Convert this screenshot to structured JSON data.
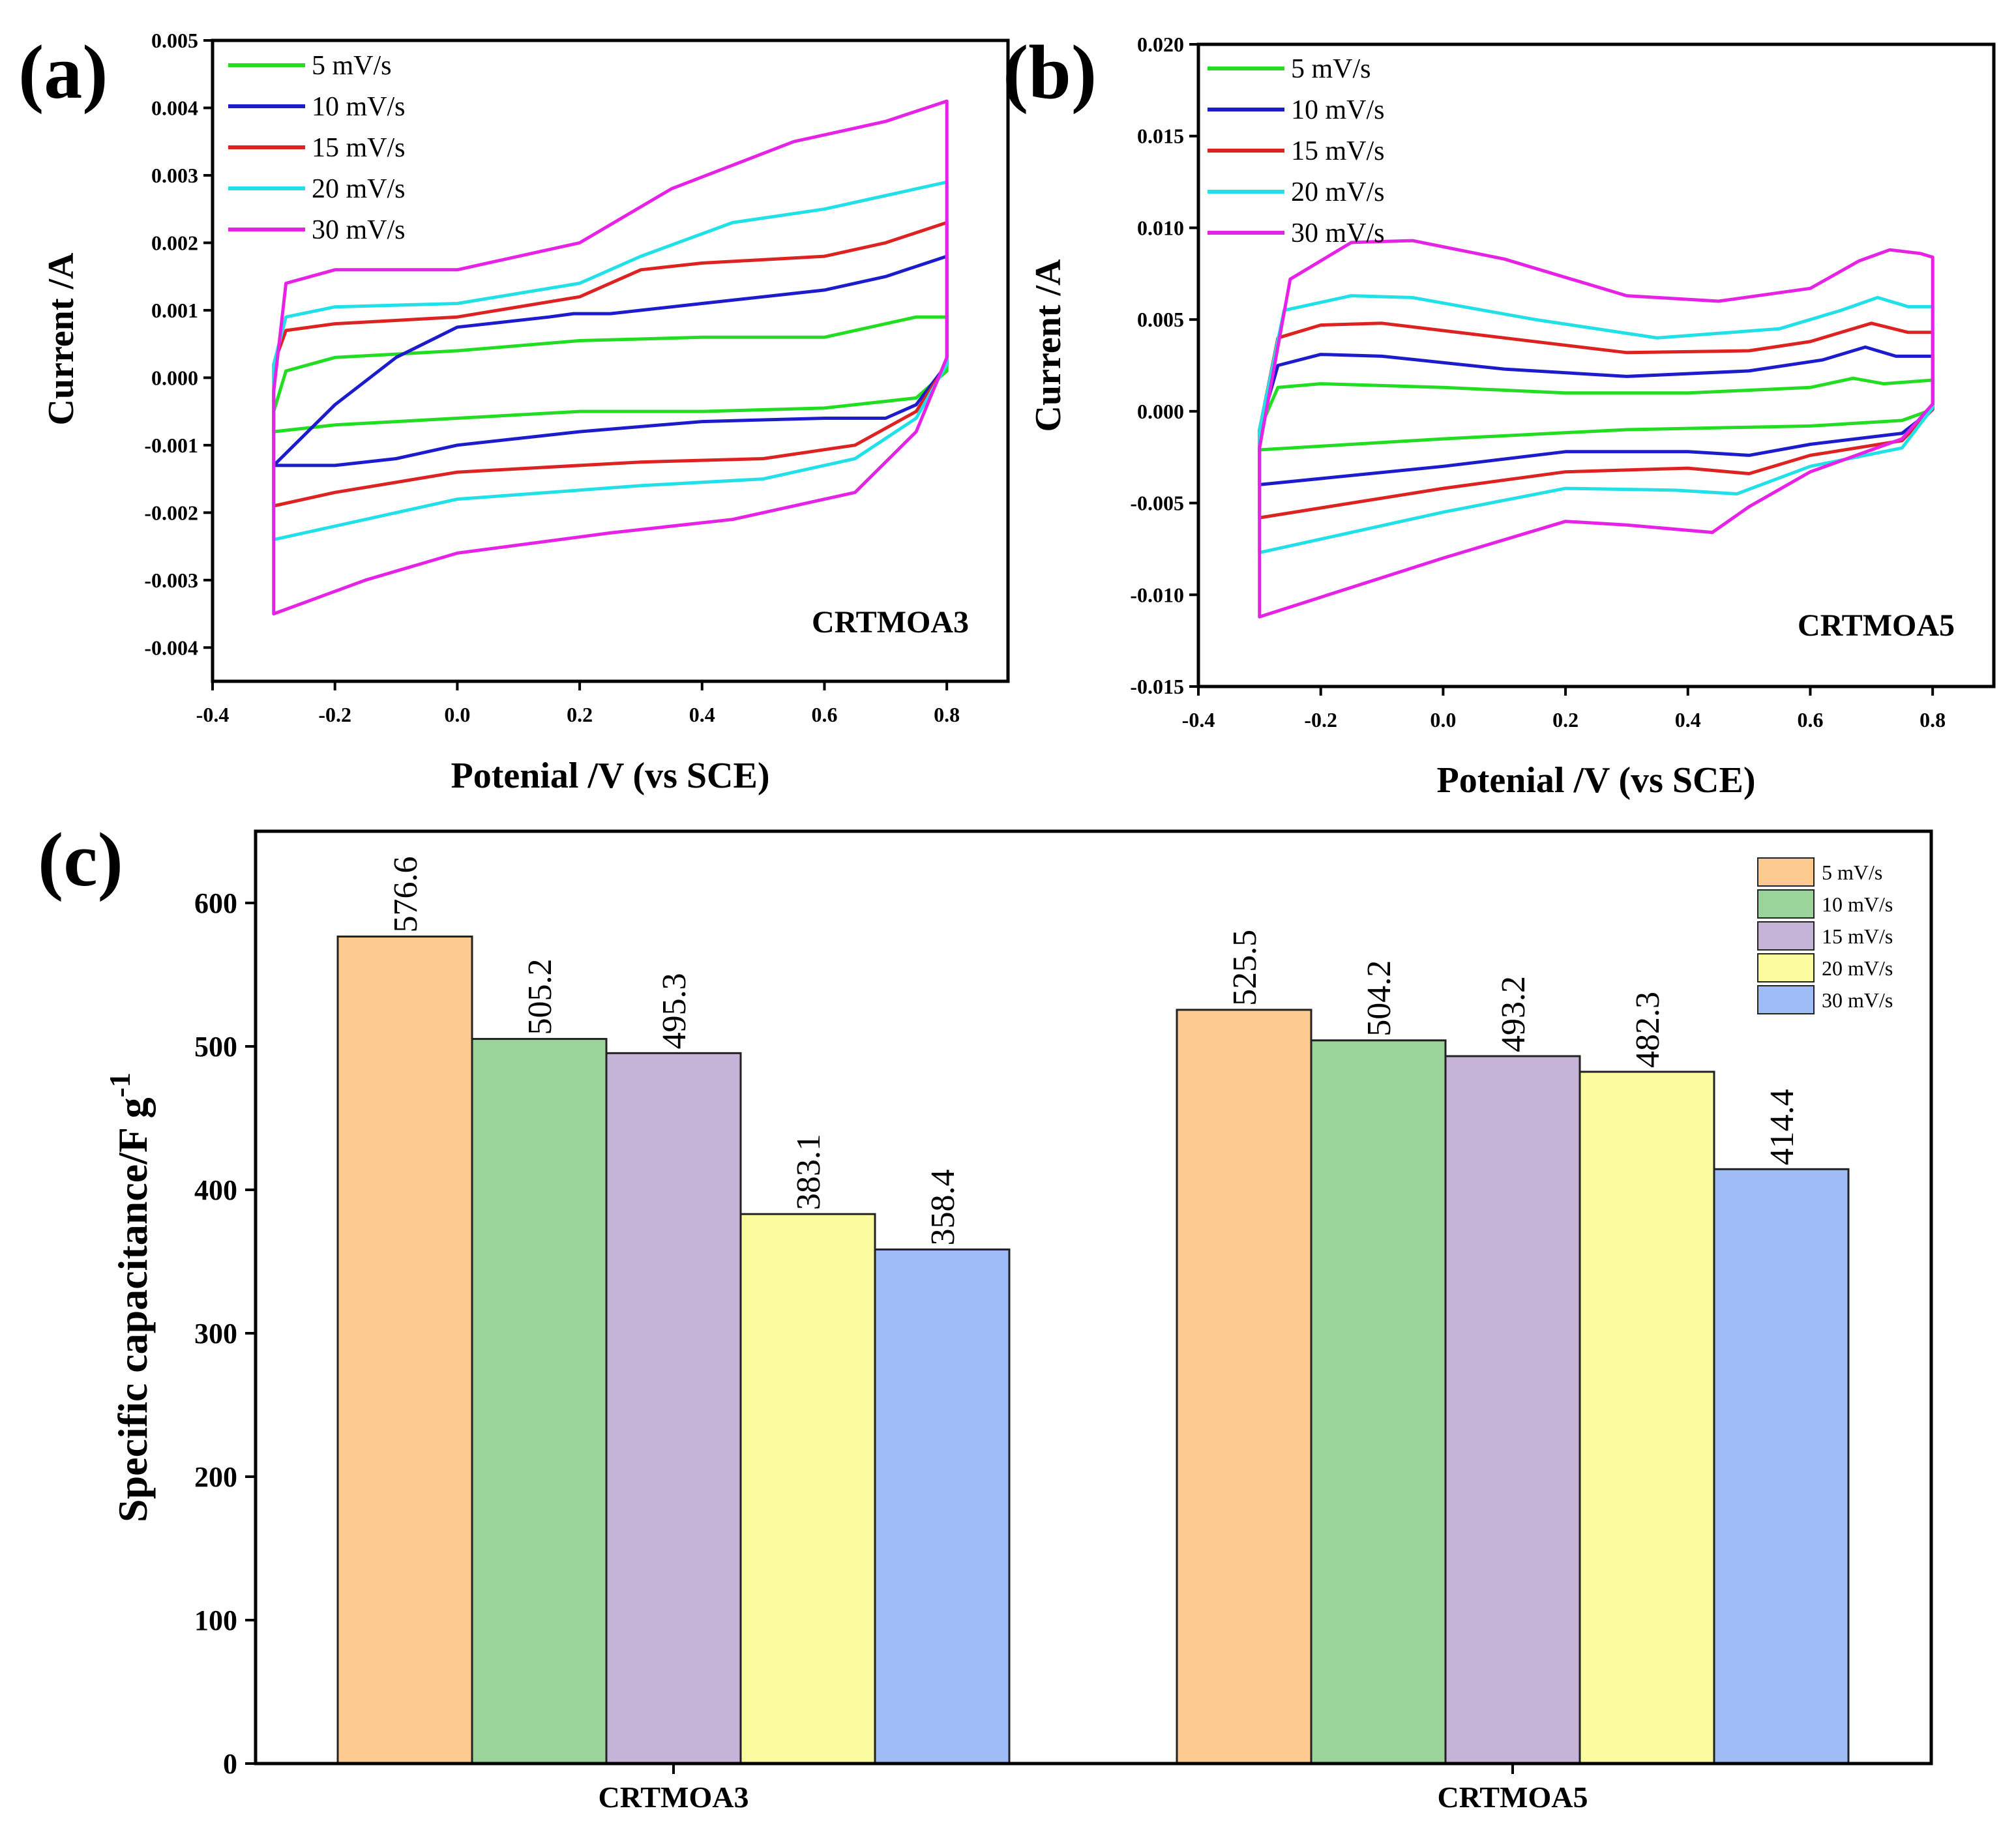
{
  "chart_data": [
    {
      "panel": "(a)",
      "type": "line",
      "subtype": "cyclic voltammetry",
      "sample_label": "CRTMOA3",
      "xlabel": "Potenial /V (vs SCE)",
      "ylabel": "Current /A",
      "xlim": [
        -0.4,
        0.9
      ],
      "ylim": [
        -0.0045,
        0.005
      ],
      "xticks": [
        "-0.4",
        "-0.2",
        "0.0",
        "0.2",
        "0.4",
        "0.6",
        "0.8"
      ],
      "yticks": [
        "0.005",
        "0.004",
        "0.003",
        "0.002",
        "0.001",
        "0.000",
        "-0.001",
        "-0.002",
        "-0.003",
        "-0.004"
      ],
      "legend_position": "top-left",
      "series": [
        {
          "name": "5 mV/s",
          "color": "#22dd22",
          "upper": [
            [
              -0.3,
              -0.0005
            ],
            [
              -0.28,
              0.0001
            ],
            [
              -0.2,
              0.0003
            ],
            [
              0.0,
              0.0004
            ],
            [
              0.2,
              0.00055
            ],
            [
              0.4,
              0.0006
            ],
            [
              0.6,
              0.0006
            ],
            [
              0.75,
              0.0009
            ],
            [
              0.8,
              0.0009
            ]
          ],
          "lower": [
            [
              0.8,
              0.0001
            ],
            [
              0.75,
              -0.0003
            ],
            [
              0.6,
              -0.00045
            ],
            [
              0.4,
              -0.0005
            ],
            [
              0.2,
              -0.0005
            ],
            [
              0.0,
              -0.0006
            ],
            [
              -0.2,
              -0.0007
            ],
            [
              -0.3,
              -0.0008
            ]
          ]
        },
        {
          "name": "10 mV/s",
          "color": "#1c1ccc",
          "upper": [
            [
              -0.3,
              -0.0013
            ],
            [
              -0.2,
              -0.0004
            ],
            [
              -0.1,
              0.0003
            ],
            [
              0.0,
              0.00075
            ],
            [
              0.15,
              0.0009
            ],
            [
              0.19,
              0.00095
            ],
            [
              0.25,
              0.00095
            ],
            [
              0.4,
              0.0011
            ],
            [
              0.6,
              0.0013
            ],
            [
              0.7,
              0.0015
            ],
            [
              0.8,
              0.0018
            ]
          ],
          "lower": [
            [
              0.8,
              0.0002
            ],
            [
              0.75,
              -0.0004
            ],
            [
              0.7,
              -0.0006
            ],
            [
              0.6,
              -0.0006
            ],
            [
              0.4,
              -0.00065
            ],
            [
              0.2,
              -0.0008
            ],
            [
              0.0,
              -0.001
            ],
            [
              -0.1,
              -0.0012
            ],
            [
              -0.2,
              -0.0013
            ],
            [
              -0.3,
              -0.0013
            ]
          ]
        },
        {
          "name": "15 mV/s",
          "color": "#dd2222",
          "upper": [
            [
              -0.3,
              0.0002
            ],
            [
              -0.28,
              0.0007
            ],
            [
              -0.2,
              0.0008
            ],
            [
              0.0,
              0.0009
            ],
            [
              0.2,
              0.0012
            ],
            [
              0.3,
              0.0016
            ],
            [
              0.4,
              0.0017
            ],
            [
              0.6,
              0.0018
            ],
            [
              0.7,
              0.002
            ],
            [
              0.8,
              0.0023
            ]
          ],
          "lower": [
            [
              0.8,
              0.0002
            ],
            [
              0.75,
              -0.0005
            ],
            [
              0.65,
              -0.001
            ],
            [
              0.5,
              -0.0012
            ],
            [
              0.3,
              -0.00125
            ],
            [
              0.0,
              -0.0014
            ],
            [
              -0.2,
              -0.0017
            ],
            [
              -0.3,
              -0.0019
            ]
          ]
        },
        {
          "name": "20 mV/s",
          "color": "#22e0e8",
          "upper": [
            [
              -0.3,
              0.0002
            ],
            [
              -0.28,
              0.0009
            ],
            [
              -0.2,
              0.00105
            ],
            [
              0.0,
              0.0011
            ],
            [
              0.2,
              0.0014
            ],
            [
              0.3,
              0.0018
            ],
            [
              0.45,
              0.0023
            ],
            [
              0.6,
              0.0025
            ],
            [
              0.7,
              0.0027
            ],
            [
              0.8,
              0.0029
            ]
          ],
          "lower": [
            [
              0.8,
              0.0002
            ],
            [
              0.75,
              -0.0006
            ],
            [
              0.65,
              -0.0012
            ],
            [
              0.5,
              -0.0015
            ],
            [
              0.3,
              -0.0016
            ],
            [
              0.0,
              -0.0018
            ],
            [
              -0.15,
              -0.0021
            ],
            [
              -0.3,
              -0.0024
            ]
          ]
        },
        {
          "name": "30 mV/s",
          "color": "#e622e6",
          "upper": [
            [
              -0.3,
              -0.0002
            ],
            [
              -0.28,
              0.0014
            ],
            [
              -0.2,
              0.0016
            ],
            [
              0.0,
              0.0016
            ],
            [
              0.2,
              0.002
            ],
            [
              0.35,
              0.0028
            ],
            [
              0.55,
              0.0035
            ],
            [
              0.7,
              0.0038
            ],
            [
              0.8,
              0.0041
            ]
          ],
          "lower": [
            [
              0.8,
              0.0003
            ],
            [
              0.75,
              -0.0008
            ],
            [
              0.65,
              -0.0017
            ],
            [
              0.45,
              -0.0021
            ],
            [
              0.25,
              -0.0023
            ],
            [
              0.0,
              -0.0026
            ],
            [
              -0.15,
              -0.003
            ],
            [
              -0.3,
              -0.0035
            ]
          ]
        }
      ]
    },
    {
      "panel": "(b)",
      "type": "line",
      "subtype": "cyclic voltammetry",
      "sample_label": "CRTMOA5",
      "xlabel": "Potenial /V (vs SCE)",
      "ylabel": "Current /A",
      "xlim": [
        -0.4,
        0.9
      ],
      "ylim": [
        -0.015,
        0.02
      ],
      "xticks": [
        "-0.4",
        "-0.2",
        "0.0",
        "0.2",
        "0.4",
        "0.6",
        "0.8"
      ],
      "yticks": [
        "0.020",
        "0.015",
        "0.010",
        "0.005",
        "0.000",
        "-0.005",
        "-0.010",
        "-0.015"
      ],
      "legend_position": "top-left",
      "series": [
        {
          "name": "5 mV/s",
          "color": "#22dd22",
          "upper": [
            [
              -0.3,
              -0.001
            ],
            [
              -0.27,
              0.0013
            ],
            [
              -0.2,
              0.0015
            ],
            [
              0.0,
              0.0013
            ],
            [
              0.2,
              0.001
            ],
            [
              0.4,
              0.001
            ],
            [
              0.6,
              0.0013
            ],
            [
              0.67,
              0.0018
            ],
            [
              0.72,
              0.0015
            ],
            [
              0.8,
              0.0017
            ]
          ],
          "lower": [
            [
              0.8,
              0.0001
            ],
            [
              0.75,
              -0.0005
            ],
            [
              0.6,
              -0.0008
            ],
            [
              0.3,
              -0.001
            ],
            [
              0.0,
              -0.0015
            ],
            [
              -0.3,
              -0.0021
            ]
          ]
        },
        {
          "name": "10 mV/s",
          "color": "#1c1ccc",
          "upper": [
            [
              -0.3,
              -0.001
            ],
            [
              -0.27,
              0.0025
            ],
            [
              -0.2,
              0.0031
            ],
            [
              -0.1,
              0.003
            ],
            [
              0.1,
              0.0023
            ],
            [
              0.3,
              0.0019
            ],
            [
              0.5,
              0.0022
            ],
            [
              0.62,
              0.0028
            ],
            [
              0.69,
              0.0035
            ],
            [
              0.74,
              0.003
            ],
            [
              0.8,
              0.003
            ]
          ],
          "lower": [
            [
              0.8,
              0.0001
            ],
            [
              0.75,
              -0.0012
            ],
            [
              0.6,
              -0.0018
            ],
            [
              0.5,
              -0.0024
            ],
            [
              0.4,
              -0.0022
            ],
            [
              0.2,
              -0.0022
            ],
            [
              0.0,
              -0.003
            ],
            [
              -0.3,
              -0.004
            ]
          ]
        },
        {
          "name": "15 mV/s",
          "color": "#dd2222",
          "upper": [
            [
              -0.3,
              -0.001
            ],
            [
              -0.27,
              0.004
            ],
            [
              -0.2,
              0.0047
            ],
            [
              -0.1,
              0.0048
            ],
            [
              0.1,
              0.004
            ],
            [
              0.3,
              0.0032
            ],
            [
              0.5,
              0.0033
            ],
            [
              0.6,
              0.0038
            ],
            [
              0.7,
              0.0048
            ],
            [
              0.76,
              0.0043
            ],
            [
              0.8,
              0.0043
            ]
          ],
          "lower": [
            [
              0.8,
              0.0001
            ],
            [
              0.75,
              -0.0016
            ],
            [
              0.6,
              -0.0024
            ],
            [
              0.5,
              -0.0034
            ],
            [
              0.4,
              -0.0031
            ],
            [
              0.2,
              -0.0033
            ],
            [
              0.0,
              -0.0042
            ],
            [
              -0.3,
              -0.0058
            ]
          ]
        },
        {
          "name": "20 mV/s",
          "color": "#22e0e8",
          "upper": [
            [
              -0.3,
              -0.001
            ],
            [
              -0.26,
              0.0055
            ],
            [
              -0.15,
              0.0063
            ],
            [
              -0.05,
              0.0062
            ],
            [
              0.15,
              0.005
            ],
            [
              0.35,
              0.004
            ],
            [
              0.55,
              0.0045
            ],
            [
              0.65,
              0.0055
            ],
            [
              0.71,
              0.0062
            ],
            [
              0.76,
              0.0057
            ],
            [
              0.8,
              0.0057
            ]
          ],
          "lower": [
            [
              0.8,
              0.0002
            ],
            [
              0.75,
              -0.002
            ],
            [
              0.6,
              -0.003
            ],
            [
              0.48,
              -0.0045
            ],
            [
              0.38,
              -0.0043
            ],
            [
              0.2,
              -0.0042
            ],
            [
              0.0,
              -0.0055
            ],
            [
              -0.3,
              -0.0077
            ]
          ]
        },
        {
          "name": "30 mV/s",
          "color": "#e622e6",
          "upper": [
            [
              -0.3,
              -0.002
            ],
            [
              -0.25,
              0.0072
            ],
            [
              -0.15,
              0.0092
            ],
            [
              -0.05,
              0.0093
            ],
            [
              0.1,
              0.0083
            ],
            [
              0.3,
              0.0063
            ],
            [
              0.45,
              0.006
            ],
            [
              0.6,
              0.0067
            ],
            [
              0.68,
              0.0082
            ],
            [
              0.73,
              0.0088
            ],
            [
              0.78,
              0.0086
            ],
            [
              0.8,
              0.0084
            ]
          ],
          "lower": [
            [
              0.8,
              0.0004
            ],
            [
              0.75,
              -0.0015
            ],
            [
              0.6,
              -0.0033
            ],
            [
              0.5,
              -0.0052
            ],
            [
              0.44,
              -0.0066
            ],
            [
              0.3,
              -0.0062
            ],
            [
              0.2,
              -0.006
            ],
            [
              0.0,
              -0.008
            ],
            [
              -0.3,
              -0.0112
            ]
          ]
        }
      ]
    },
    {
      "panel": "(c)",
      "type": "bar",
      "xlabel": "",
      "ylabel": "Specific capacitance/F g",
      "ylabel_superscript": "-1",
      "ylim": [
        0,
        650
      ],
      "yticks": [
        "0",
        "100",
        "200",
        "300",
        "400",
        "500",
        "600"
      ],
      "categories": [
        "CRTMOA3",
        "CRTMOA5"
      ],
      "legend_position": "top-right",
      "series": [
        {
          "name": "5 mV/s",
          "color": "#fdcb8f",
          "values": [
            576.6,
            525.5
          ],
          "labels": [
            "576.6",
            "525.5"
          ]
        },
        {
          "name": "10 mV/s",
          "color": "#9ad49b",
          "values": [
            505.2,
            504.2
          ],
          "labels": [
            "505.2",
            "504.2"
          ]
        },
        {
          "name": "15 mV/s",
          "color": "#c5b3d8",
          "values": [
            495.3,
            493.2
          ],
          "labels": [
            "495.3",
            "493.2"
          ]
        },
        {
          "name": "20 mV/s",
          "color": "#fbfb9f",
          "values": [
            383.1,
            482.3
          ],
          "labels": [
            "383.1",
            "482.3"
          ]
        },
        {
          "name": "30 mV/s",
          "color": "#9fbcf6",
          "values": [
            358.4,
            414.4
          ],
          "labels": [
            "358.4",
            "414.4"
          ]
        }
      ]
    }
  ]
}
